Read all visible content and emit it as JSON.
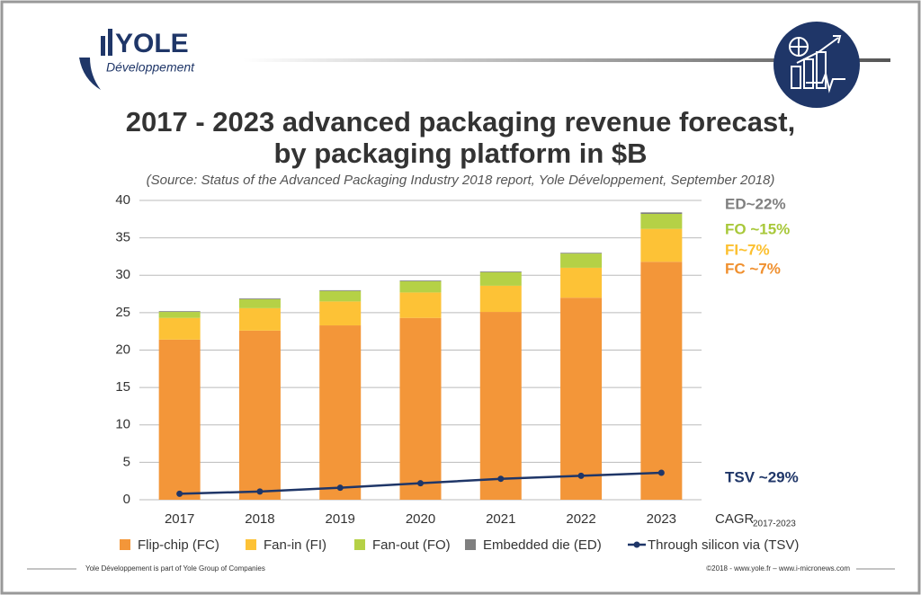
{
  "header": {
    "logo_name": "YOLE",
    "logo_sub": "Développement"
  },
  "chart_data": {
    "type": "bar",
    "stacked": true,
    "title_lines": [
      "2017 - 2023 advanced packaging revenue forecast,",
      "by packaging platform in $B"
    ],
    "subtitle": "(Source: Status of the Advanced Packaging Industry 2018 report, Yole Développement, September 2018)",
    "categories": [
      "2017",
      "2018",
      "2019",
      "2020",
      "2021",
      "2022",
      "2023"
    ],
    "series": [
      {
        "name": "Flip-chip (FC)",
        "color": "#f39639",
        "values": [
          21.4,
          22.6,
          23.3,
          24.3,
          25.1,
          27.0,
          31.8
        ]
      },
      {
        "name": "Fan-in (FI)",
        "color": "#fdc236",
        "values": [
          2.9,
          3.0,
          3.2,
          3.4,
          3.5,
          4.0,
          4.4
        ]
      },
      {
        "name": "Fan-out (FO)",
        "color": "#b5d146",
        "values": [
          0.8,
          1.2,
          1.4,
          1.5,
          1.8,
          1.9,
          2.0
        ]
      },
      {
        "name": "Embedded die (ED)",
        "color": "#7f7f7f",
        "values": [
          0.1,
          0.1,
          0.1,
          0.1,
          0.1,
          0.1,
          0.2
        ]
      },
      {
        "name": "Through silicon via (TSV)",
        "color": "#1f3668",
        "type": "line",
        "values": [
          0.8,
          1.1,
          1.6,
          2.2,
          2.8,
          3.2,
          3.6
        ]
      }
    ],
    "ylim": [
      0,
      40
    ],
    "yticks": [
      0,
      5,
      10,
      15,
      20,
      25,
      30,
      35,
      40
    ],
    "grid": true,
    "annotations": [
      {
        "text": "ED~22%",
        "color": "#7f7f7f"
      },
      {
        "text": "FO ~15%",
        "color": "#a8c83a"
      },
      {
        "text": "FI~7%",
        "color": "#fcc030"
      },
      {
        "text": "FC ~7%",
        "color": "#f0902f"
      },
      {
        "text": "TSV ~29%",
        "color": "#1f3668"
      }
    ],
    "cagr_label": "CAGR",
    "cagr_period": "2017-2023"
  },
  "footer": {
    "left": "Yole Développement is part of Yole Group of Companies",
    "right": "©2018 - www.yole.fr – www.i-micronews.com"
  }
}
